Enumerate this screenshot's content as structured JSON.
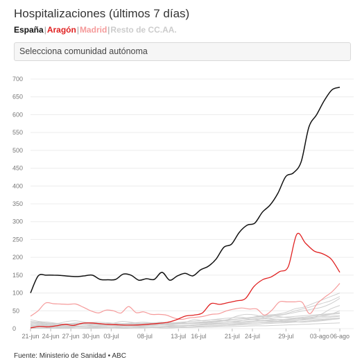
{
  "title": "Hospitalizaciones (últimos 7 días)",
  "legend": [
    {
      "label": "España",
      "color": "#111111"
    },
    {
      "label": "Aragón",
      "color": "#e02020"
    },
    {
      "label": "Madrid",
      "color": "#f59a9a"
    },
    {
      "label": "Resto de CC.AA.",
      "color": "#cccccc"
    }
  ],
  "legend_separator": "|",
  "selector": {
    "placeholder": "Selecciona comunidad autónoma"
  },
  "source": "Fuente: Ministerio de Sanidad • ABC",
  "chart_data": {
    "type": "line",
    "x_ticks": [
      "21-jun",
      "24-jun",
      "27-jun",
      "30-jun",
      "03-jul",
      "08-jul",
      "13-jul",
      "16-jul",
      "21-jul",
      "24-jul",
      "29-jul",
      "03-ago",
      "06-ago"
    ],
    "x_tick_positions": [
      0,
      3,
      6,
      9,
      12,
      17,
      22,
      25,
      30,
      33,
      38,
      43,
      46
    ],
    "ylim": [
      0,
      700
    ],
    "y_ticks": [
      0,
      50,
      100,
      150,
      200,
      250,
      300,
      350,
      400,
      450,
      500,
      550,
      600,
      650,
      700
    ],
    "grid": true,
    "series": [
      {
        "name": "España",
        "color": "#111111",
        "width": 1.5,
        "values": [
          100,
          148,
          150,
          150,
          149,
          147,
          146,
          148,
          150,
          138,
          137,
          138,
          153,
          150,
          136,
          140,
          138,
          158,
          136,
          148,
          155,
          148,
          165,
          175,
          195,
          228,
          237,
          270,
          290,
          296,
          327,
          347,
          380,
          426,
          437,
          468,
          565,
          600,
          640,
          670,
          677
        ]
      },
      {
        "name": "Aragón",
        "color": "#e02020",
        "width": 1.3,
        "values": [
          2,
          6,
          5,
          8,
          12,
          9,
          15,
          16,
          14,
          12,
          11,
          10,
          10,
          11,
          13,
          15,
          18,
          25,
          35,
          38,
          44,
          70,
          68,
          73,
          78,
          84,
          118,
          137,
          145,
          160,
          174,
          265,
          240,
          218,
          210,
          195,
          158
        ]
      },
      {
        "name": "Madrid",
        "color": "#f59a9a",
        "width": 1.2,
        "values": [
          35,
          50,
          72,
          70,
          69,
          68,
          69,
          60,
          50,
          44,
          52,
          50,
          44,
          62,
          45,
          47,
          40,
          40,
          38,
          30,
          26,
          30,
          32,
          35,
          40,
          42,
          50,
          55,
          58,
          55,
          55,
          38,
          52,
          75,
          75,
          75,
          74,
          42,
          70,
          88,
          104,
          127
        ]
      }
    ],
    "background_series": [
      [
        25,
        20,
        18,
        15,
        20,
        22,
        18,
        16,
        14,
        15,
        20,
        18,
        15,
        14,
        16,
        15,
        14,
        18,
        25,
        22,
        25,
        28,
        30,
        32,
        30,
        35,
        38,
        40,
        45,
        55,
        60,
        70,
        80,
        90,
        100
      ],
      [
        15,
        14,
        12,
        10,
        12,
        15,
        14,
        12,
        10,
        12,
        14,
        12,
        12,
        11,
        12,
        14,
        15,
        16,
        15,
        18,
        20,
        22,
        25,
        28,
        30,
        32,
        34,
        36,
        40,
        45,
        50,
        55,
        60,
        70,
        85
      ],
      [
        10,
        12,
        10,
        9,
        10,
        12,
        11,
        10,
        9,
        10,
        12,
        14,
        15,
        16,
        18,
        17,
        16,
        15,
        18,
        20,
        22,
        25,
        27,
        30,
        33,
        35,
        38,
        40,
        48,
        55,
        62,
        70,
        78,
        90
      ],
      [
        20,
        18,
        15,
        14,
        12,
        14,
        16,
        18,
        17,
        15,
        14,
        13,
        12,
        14,
        15,
        16,
        18,
        20,
        22,
        24,
        25,
        22,
        20,
        25,
        28,
        30,
        35,
        32,
        30,
        32,
        35,
        38,
        40,
        42
      ],
      [
        8,
        9,
        8,
        7,
        6,
        7,
        8,
        10,
        12,
        11,
        10,
        9,
        8,
        9,
        10,
        12,
        13,
        14,
        15,
        16,
        18,
        20,
        22,
        24,
        26,
        28,
        30,
        32,
        34,
        36,
        38,
        40,
        42,
        45
      ],
      [
        5,
        6,
        5,
        6,
        7,
        8,
        7,
        6,
        5,
        6,
        7,
        8,
        9,
        10,
        11,
        10,
        9,
        10,
        12,
        14,
        15,
        16,
        17,
        18,
        20,
        22,
        23,
        25,
        26,
        27,
        28,
        30,
        32,
        35
      ],
      [
        12,
        10,
        9,
        8,
        10,
        12,
        14,
        13,
        12,
        10,
        9,
        10,
        12,
        14,
        16,
        15,
        14,
        15,
        16,
        18,
        20,
        25,
        35,
        40,
        38,
        30,
        26,
        22,
        20,
        18,
        20,
        22,
        25,
        28
      ],
      [
        4,
        5,
        4,
        3,
        4,
        5,
        6,
        5,
        4,
        5,
        6,
        7,
        6,
        5,
        6,
        7,
        8,
        9,
        10,
        11,
        12,
        13,
        14,
        15,
        16,
        17,
        18,
        20,
        22,
        24,
        25,
        26,
        28,
        30
      ],
      [
        3,
        2,
        3,
        4,
        3,
        2,
        3,
        4,
        5,
        4,
        3,
        4,
        5,
        6,
        5,
        4,
        5,
        6,
        7,
        8,
        9,
        10,
        12,
        14,
        16,
        18,
        20,
        22,
        25,
        28,
        30,
        35,
        40,
        50
      ],
      [
        18,
        16,
        14,
        12,
        14,
        16,
        14,
        12,
        10,
        12,
        14,
        16,
        18,
        16,
        14,
        12,
        14,
        16,
        18,
        20,
        22,
        24,
        26,
        28,
        25,
        22,
        20,
        18,
        20,
        25,
        30,
        40,
        55,
        65
      ],
      [
        2,
        2,
        1,
        2,
        3,
        2,
        2,
        3,
        2,
        2,
        3,
        4,
        3,
        3,
        4,
        5,
        5,
        6,
        6,
        7,
        8,
        9,
        10,
        11,
        12,
        14,
        15,
        16,
        18,
        20,
        22,
        24,
        26,
        30
      ],
      [
        6,
        7,
        8,
        7,
        6,
        5,
        6,
        7,
        8,
        9,
        8,
        7,
        8,
        9,
        10,
        9,
        8,
        9,
        10,
        12,
        14,
        16,
        18,
        20,
        22,
        24,
        25,
        26,
        28,
        30,
        32,
        34,
        35,
        36
      ],
      [
        1,
        1,
        2,
        1,
        1,
        2,
        1,
        1,
        2,
        2,
        1,
        2,
        2,
        3,
        2,
        2,
        3,
        3,
        4,
        4,
        5,
        5,
        6,
        7,
        8,
        8,
        9,
        10,
        11,
        12,
        13,
        14,
        15,
        16
      ]
    ],
    "background_color": "#cfcfcf"
  }
}
